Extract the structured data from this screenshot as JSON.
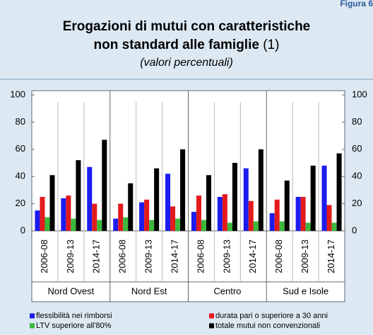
{
  "header": {
    "figure": "Figura 6"
  },
  "chart_data": {
    "type": "bar",
    "title": [
      "Erogazioni di mutui con caratteristiche",
      "non standard alle famiglie"
    ],
    "title_note": "(1)",
    "subtitle": "(valori percentuali)",
    "categories": [
      "2006-08",
      "2009-13",
      "2014-17",
      "2006-08",
      "2009-13",
      "2014-17",
      "2006-08",
      "2009-13",
      "2014-17",
      "2006-08",
      "2009-13",
      "2014-17"
    ],
    "groups": [
      "Nord Ovest",
      "Nord Est",
      "Centro",
      "Sud e Isole"
    ],
    "series": [
      {
        "name": "flessibilità nei rimborsi",
        "color": "#1c1cf0",
        "values": [
          15,
          24,
          47,
          9,
          21,
          42,
          14,
          25,
          46,
          13,
          25,
          48
        ]
      },
      {
        "name": "durata pari o superiore a 30 anni",
        "color": "#e31a1c",
        "values": [
          25,
          26,
          20,
          20,
          23,
          18,
          26,
          27,
          22,
          23,
          25,
          19
        ]
      },
      {
        "name": "LTV superiore all'80%",
        "color": "#3cb83c",
        "values": [
          10,
          9,
          8,
          10,
          8,
          9,
          8,
          6,
          7,
          7,
          6,
          6
        ]
      },
      {
        "name": "totale mutui non convenzionali",
        "color": "#000000",
        "values": [
          41,
          52,
          67,
          35,
          46,
          60,
          41,
          50,
          60,
          37,
          48,
          57
        ]
      }
    ],
    "ylim": [
      0,
      100
    ],
    "yticks": [
      0,
      20,
      40,
      60,
      80,
      100
    ],
    "y2lim": [
      0,
      100
    ],
    "y2ticks": [
      0,
      20,
      40,
      60,
      80,
      100
    ]
  }
}
